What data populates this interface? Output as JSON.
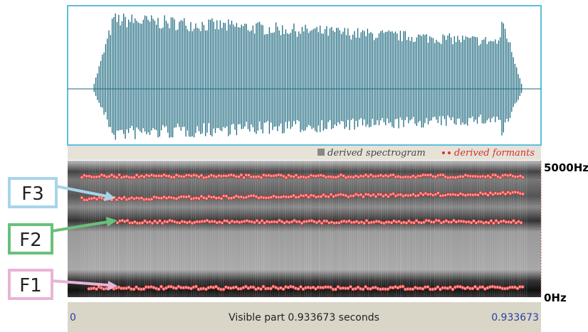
{
  "legend": {
    "spectrogram": "derived spectrogram",
    "formants": "derived formants"
  },
  "frequency_axis": {
    "top": "5000Hz",
    "bottom": "0Hz"
  },
  "time_bar": {
    "start": "0",
    "caption": "Visible part 0.933673 seconds",
    "end": "0.933673"
  },
  "callouts": [
    "F3",
    "F2",
    "F1"
  ]
}
